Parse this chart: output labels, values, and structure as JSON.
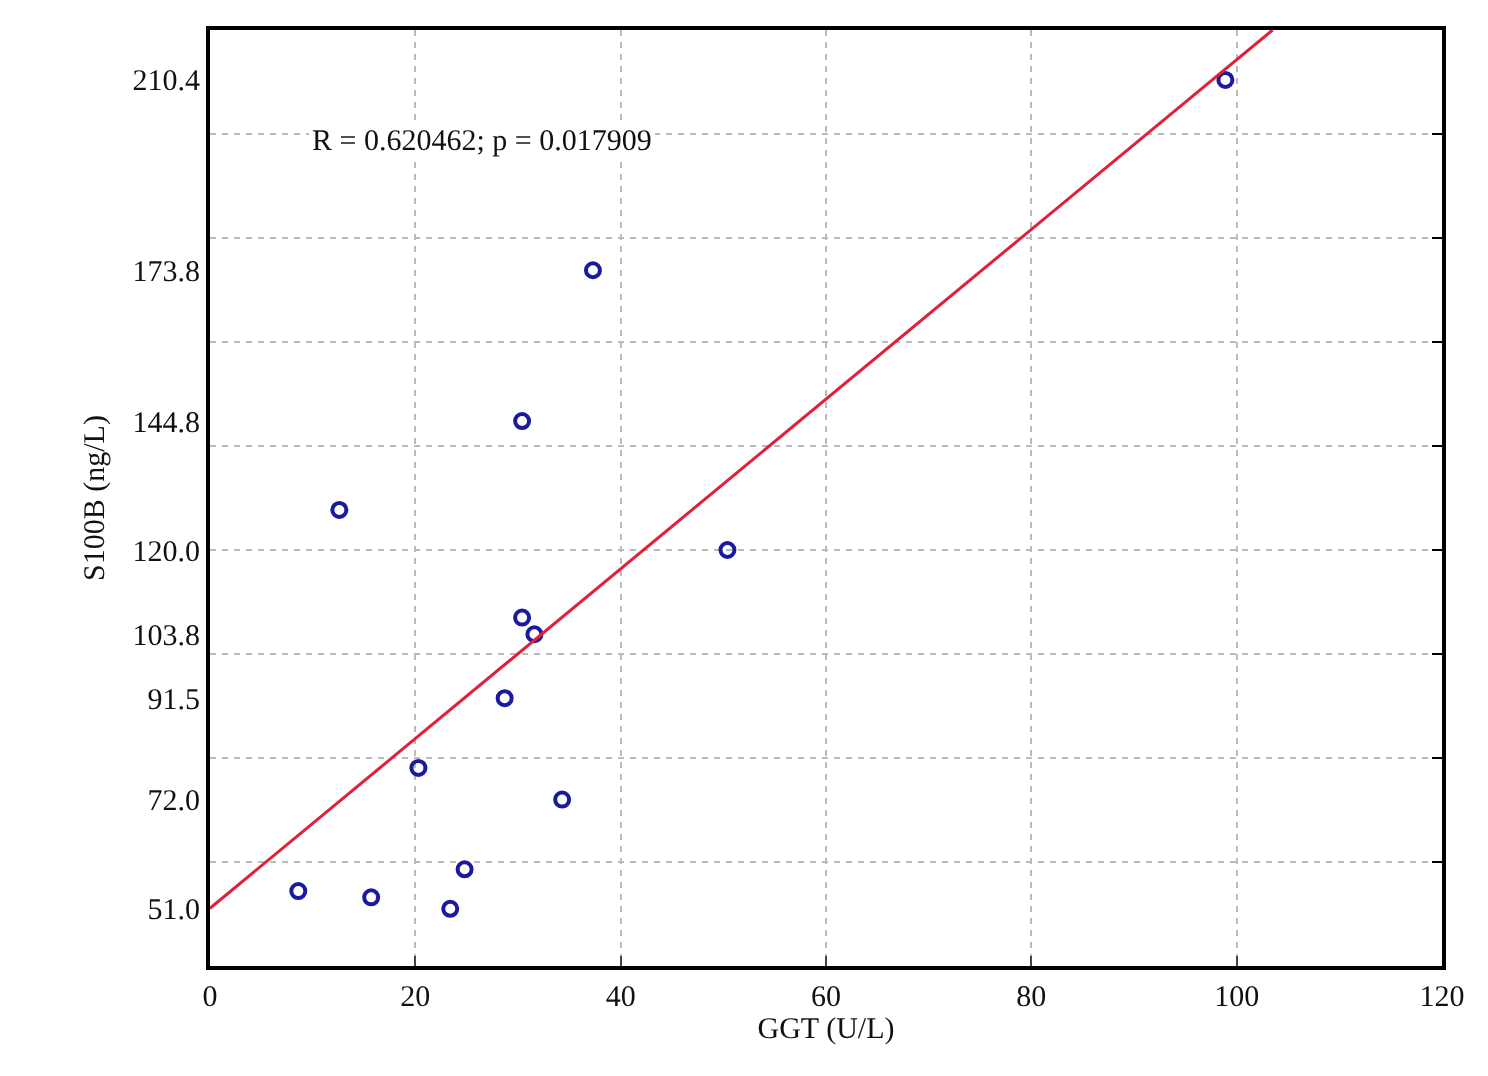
{
  "chart_data": {
    "type": "scatter",
    "xlabel": "GGT (U/L)",
    "ylabel": "S100B (ng/L)",
    "annotations": [
      "R = 0.620462; p = 0.017909"
    ],
    "xlim": [
      0,
      120
    ],
    "xticks": [
      0,
      20,
      40,
      60,
      80,
      100,
      120
    ],
    "ylim": [
      40,
      220
    ],
    "yticks": [
      {
        "value": 51.0,
        "label": "51.0"
      },
      {
        "value": 72.0,
        "label": "72.0"
      },
      {
        "value": 91.5,
        "label": "91.5"
      },
      {
        "value": 103.8,
        "label": "103.8"
      },
      {
        "value": 120.0,
        "label": "120.0"
      },
      {
        "value": 144.8,
        "label": "144.8"
      },
      {
        "value": 173.8,
        "label": "173.8"
      },
      {
        "value": 210.4,
        "label": "210.4"
      },
      {
        "value": 60,
        "label": null
      },
      {
        "value": 80,
        "label": null
      },
      {
        "value": 100,
        "label": null
      },
      {
        "value": 120,
        "label": null
      },
      {
        "value": 140,
        "label": null
      },
      {
        "value": 160,
        "label": null
      },
      {
        "value": 180,
        "label": null
      },
      {
        "value": 200,
        "label": null
      }
    ],
    "grid": true,
    "series": [
      {
        "marker": "circle",
        "color": "#1a1aa0",
        "x": [
          8.6,
          15.7,
          23.4,
          24.8,
          20.3,
          34.3,
          28.7,
          30.4,
          31.6,
          50.4,
          12.6,
          30.4,
          37.3,
          98.9
        ],
        "values": [
          54.4,
          53.2,
          51.0,
          58.6,
          78.1,
          72.0,
          91.5,
          107.0,
          103.8,
          120.0,
          127.7,
          144.8,
          173.8,
          210.4
        ]
      },
      {
        "type": "line",
        "line_style": "solid",
        "color": "#e0203a",
        "x": [
          0,
          103.5
        ],
        "values": [
          51.1,
          220
        ]
      }
    ]
  }
}
